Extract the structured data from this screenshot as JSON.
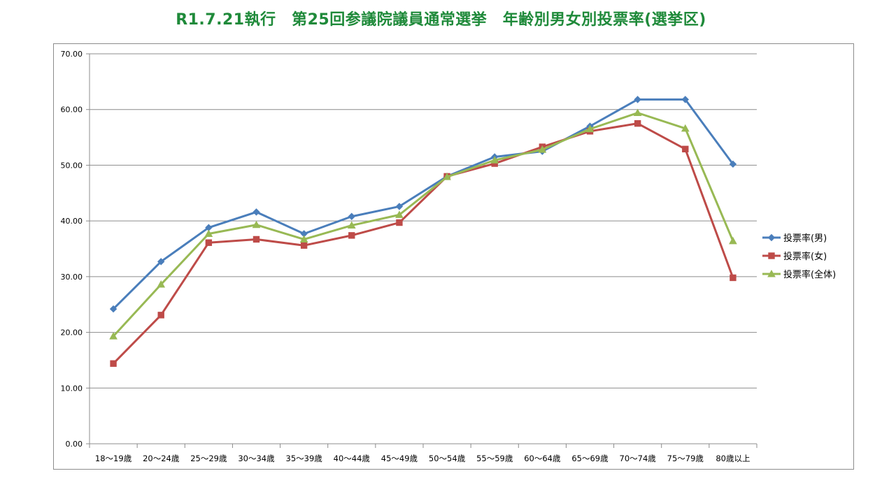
{
  "title": "R1.7.21執行　第25回参議院議員通常選挙　年齢別男女別投票率(選挙区)",
  "chart_data": {
    "type": "line",
    "title": "R1.7.21執行　第25回参議院議員通常選挙　年齢別男女別投票率(選挙区)",
    "categories": [
      "18〜19歳",
      "20〜24歳",
      "25〜29歳",
      "30〜34歳",
      "35〜39歳",
      "40〜44歳",
      "45〜49歳",
      "50〜54歳",
      "55〜59歳",
      "60〜64歳",
      "65〜69歳",
      "70〜74歳",
      "75〜79歳",
      "80歳以上"
    ],
    "y_ticks": [
      "0.00",
      "10.00",
      "20.00",
      "30.00",
      "40.00",
      "50.00",
      "60.00",
      "70.00"
    ],
    "ylim": [
      0,
      70
    ],
    "grid": true,
    "legend_position": "right",
    "series": [
      {
        "name": "投票率(男)",
        "color": "#4a7ebb",
        "marker": "diamond",
        "values": [
          24.2,
          32.7,
          38.8,
          41.6,
          37.7,
          40.8,
          42.6,
          48.0,
          51.5,
          52.5,
          57.0,
          61.8,
          61.8,
          50.2
        ]
      },
      {
        "name": "投票率(女)",
        "color": "#be4b48",
        "marker": "square",
        "values": [
          14.4,
          23.1,
          36.1,
          36.7,
          35.6,
          37.4,
          39.7,
          48.0,
          50.3,
          53.3,
          56.1,
          57.5,
          52.9,
          29.8
        ]
      },
      {
        "name": "投票率(全体)",
        "color": "#98b954",
        "marker": "triangle",
        "values": [
          19.3,
          28.6,
          37.7,
          39.3,
          36.7,
          39.2,
          41.1,
          47.9,
          50.9,
          52.8,
          56.5,
          59.4,
          56.6,
          36.4
        ]
      }
    ]
  }
}
